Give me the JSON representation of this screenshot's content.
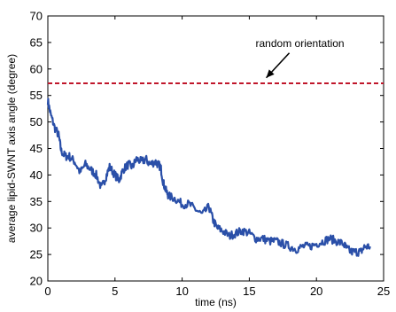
{
  "chart_data": {
    "type": "line",
    "xlabel": "time (ns)",
    "ylabel": "average lipid-SWNT axis angle (degree)",
    "xlim": [
      0,
      25
    ],
    "ylim": [
      20,
      70
    ],
    "xticks": [
      "0",
      "5",
      "10",
      "15",
      "20",
      "25"
    ],
    "yticks": [
      "20",
      "25",
      "30",
      "35",
      "40",
      "45",
      "50",
      "55",
      "60",
      "65",
      "70"
    ],
    "grid": false,
    "series": [
      {
        "color": "#2a4fa8",
        "x": [
          0.0,
          0.2,
          0.5,
          0.8,
          1.0,
          1.3,
          1.6,
          2.0,
          2.4,
          2.8,
          3.2,
          3.6,
          4.0,
          4.3,
          4.6,
          5.0,
          5.3,
          5.6,
          6.0,
          6.3,
          6.6,
          7.0,
          7.3,
          7.6,
          8.0,
          8.2,
          8.4,
          8.6,
          8.8,
          9.0,
          9.5,
          10.0,
          10.5,
          11.0,
          11.5,
          12.0,
          12.3,
          12.6,
          13.0,
          13.5,
          14.0,
          14.5,
          15.0,
          15.5,
          16.0,
          16.5,
          17.0,
          17.5,
          18.0,
          18.5,
          19.0,
          19.5,
          20.0,
          20.5,
          21.0,
          21.5,
          22.0,
          22.3,
          22.6,
          23.0,
          23.3,
          23.6,
          24.0
        ],
        "y": [
          54.0,
          51.5,
          49.0,
          47.5,
          44.5,
          43.5,
          43.5,
          42.5,
          40.5,
          42.0,
          41.0,
          40.0,
          37.5,
          39.5,
          41.5,
          40.0,
          39.0,
          41.0,
          42.0,
          41.5,
          43.0,
          42.5,
          43.0,
          42.0,
          42.5,
          42.0,
          41.5,
          38.5,
          37.0,
          36.0,
          35.5,
          34.5,
          34.5,
          33.5,
          32.5,
          34.0,
          31.5,
          30.0,
          29.5,
          28.5,
          29.0,
          29.5,
          29.0,
          28.0,
          28.0,
          27.5,
          27.5,
          27.0,
          26.5,
          26.0,
          26.5,
          26.5,
          27.0,
          27.5,
          28.0,
          27.5,
          27.0,
          26.0,
          25.5,
          25.5,
          25.5,
          26.5,
          26.5
        ]
      }
    ],
    "reference_line": {
      "y": 57.3,
      "color": "#c0172b",
      "style": "dashed"
    },
    "annotations": [
      {
        "text": "random orientation",
        "x": 16.0,
        "y": 57.5
      }
    ]
  }
}
